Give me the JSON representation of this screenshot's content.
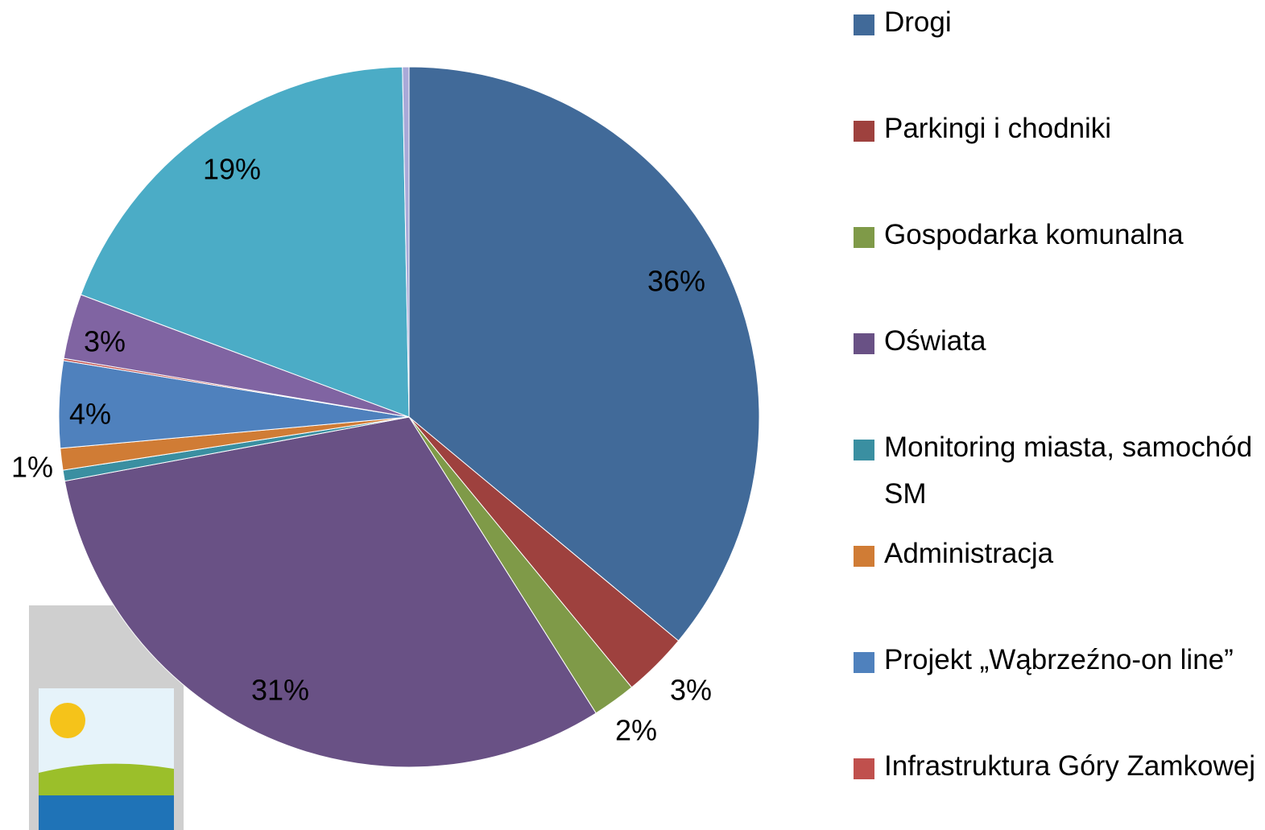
{
  "chart_data": {
    "type": "pie",
    "categories": [
      "Drogi",
      "Parkingi i chodniki",
      "Gospodarka komunalna",
      "Oświata",
      "Monitoring miasta, samochód SM",
      "Administracja",
      "Projekt „Wąbrzeźno-on line”",
      "Infrastruktura Góry Zamkowej",
      null,
      null,
      null
    ],
    "values": [
      36,
      3,
      2,
      31,
      0.5,
      1,
      4,
      0.1,
      3,
      19,
      0.3
    ],
    "value_labels": [
      "36%",
      "3%",
      "2%",
      "31%",
      null,
      "1%",
      "4%",
      null,
      "3%",
      "19%",
      null
    ],
    "colors": [
      "#416a99",
      "#9e413e",
      "#7f9a48",
      "#695185",
      "#3a8fa1",
      "#d07c35",
      "#4f81bd",
      "#c0504d",
      "#8064a2",
      "#4bacc6",
      "#a9a9d8"
    ],
    "legend": "right"
  }
}
